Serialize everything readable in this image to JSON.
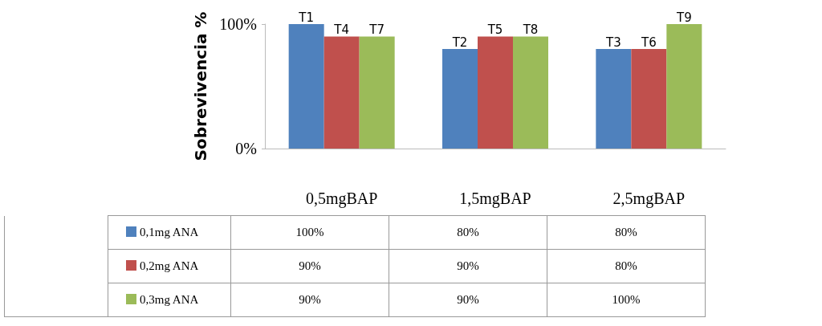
{
  "chart_data": {
    "type": "bar",
    "ylabel": "Sobrevivencia %",
    "categories": [
      "0,5mgBAP",
      "1,5mgBAP",
      "2,5mgBAP"
    ],
    "series": [
      {
        "name": "0,1mg ANA",
        "color": "#4f81bd",
        "values": [
          100,
          80,
          80
        ],
        "value_labels": [
          "100%",
          "80%",
          "80%"
        ]
      },
      {
        "name": "0,2mg ANA",
        "color": "#c0504d",
        "values": [
          90,
          90,
          80
        ],
        "value_labels": [
          "90%",
          "90%",
          "80%"
        ]
      },
      {
        "name": "0,3mg ANA",
        "color": "#9bbb59",
        "values": [
          90,
          90,
          100
        ],
        "value_labels": [
          "90%",
          "90%",
          "100%"
        ]
      }
    ],
    "annotations": [
      "T1",
      "T2",
      "T3",
      "T4",
      "T5",
      "T6",
      "T7",
      "T8",
      "T9"
    ],
    "ylim": [
      0,
      100
    ],
    "yticks": [
      {
        "value": 0,
        "label": "0%"
      },
      {
        "value": 100,
        "label": "100%"
      }
    ],
    "grid": false,
    "legend": "bottom",
    "data_labels": true
  }
}
